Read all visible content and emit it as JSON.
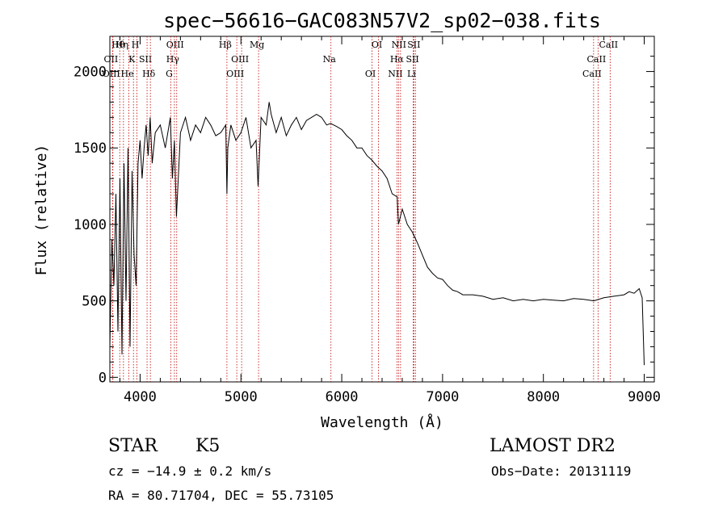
{
  "chart_data": {
    "type": "line",
    "title": "spec−56616−GAC083N57V2_sp02−038.fits",
    "xlabel": "Wavelength (Å)",
    "ylabel": "Flux (relative)",
    "xlim": [
      3700,
      9100
    ],
    "ylim": [
      -30,
      2230
    ],
    "xticks": [
      4000,
      5000,
      6000,
      7000,
      8000,
      9000
    ],
    "yticks": [
      0,
      500,
      1000,
      1500,
      2000
    ],
    "grid": false,
    "series": [
      {
        "x": [
          3700,
          3720,
          3740,
          3760,
          3780,
          3800,
          3820,
          3840,
          3860,
          3880,
          3900,
          3920,
          3940,
          3960,
          3980,
          4000,
          4020,
          4040,
          4060,
          4080,
          4100,
          4120,
          4150,
          4200,
          4250,
          4300,
          4320,
          4340,
          4360,
          4400,
          4450,
          4500,
          4550,
          4600,
          4650,
          4700,
          4750,
          4800,
          4850,
          4861,
          4870,
          4900,
          4950,
          5000,
          5050,
          5100,
          5150,
          5170,
          5200,
          5250,
          5280,
          5300,
          5350,
          5400,
          5450,
          5500,
          5550,
          5600,
          5650,
          5700,
          5750,
          5800,
          5850,
          5890,
          5950,
          6000,
          6050,
          6100,
          6150,
          6200,
          6250,
          6300,
          6350,
          6400,
          6450,
          6500,
          6550,
          6563,
          6600,
          6650,
          6700,
          6750,
          6800,
          6850,
          6900,
          6950,
          7000,
          7050,
          7100,
          7150,
          7200,
          7300,
          7400,
          7500,
          7600,
          7700,
          7800,
          7900,
          8000,
          8100,
          8200,
          8300,
          8400,
          8500,
          8600,
          8700,
          8800,
          8850,
          8900,
          8950,
          8980,
          9000
        ],
        "y": [
          200,
          900,
          600,
          1200,
          300,
          1300,
          150,
          1400,
          500,
          1500,
          200,
          1350,
          800,
          600,
          1400,
          1550,
          1300,
          1500,
          1650,
          1450,
          1700,
          1400,
          1600,
          1650,
          1500,
          1700,
          1300,
          1550,
          1050,
          1600,
          1700,
          1550,
          1650,
          1600,
          1700,
          1650,
          1580,
          1600,
          1650,
          1200,
          1500,
          1650,
          1550,
          1600,
          1700,
          1500,
          1550,
          1250,
          1700,
          1650,
          1800,
          1720,
          1600,
          1700,
          1580,
          1650,
          1700,
          1620,
          1680,
          1700,
          1720,
          1700,
          1650,
          1660,
          1640,
          1620,
          1580,
          1550,
          1500,
          1500,
          1450,
          1420,
          1380,
          1350,
          1300,
          1200,
          1180,
          1000,
          1100,
          1000,
          950,
          880,
          800,
          720,
          680,
          650,
          640,
          600,
          570,
          560,
          540,
          540,
          530,
          510,
          520,
          500,
          510,
          500,
          510,
          505,
          500,
          515,
          510,
          500,
          520,
          530,
          540,
          560,
          550,
          580,
          520,
          80
        ]
      }
    ],
    "lines": [
      {
        "label": "Hθ",
        "x": 3798
      },
      {
        "label": "OII",
        "x": 3727
      },
      {
        "label": "OIII",
        "x": 3730
      },
      {
        "label": "Hη",
        "x": 3835
      },
      {
        "label": "K",
        "x": 3934
      },
      {
        "label": "He",
        "x": 3889
      },
      {
        "label": "H",
        "x": 3969
      },
      {
        "label": "SII",
        "x": 4069
      },
      {
        "label": "Hδ",
        "x": 4102
      },
      {
        "label": "OIII",
        "x": 4363
      },
      {
        "label": "Hγ",
        "x": 4340
      },
      {
        "label": "G",
        "x": 4305
      },
      {
        "label": "Hβ",
        "x": 4861
      },
      {
        "label": "OIII",
        "x": 5007
      },
      {
        "label": "OIII",
        "x": 4959
      },
      {
        "label": "Mg",
        "x": 5175
      },
      {
        "label": "Na",
        "x": 5893
      },
      {
        "label": "OI",
        "x": 6300
      },
      {
        "label": "OI",
        "x": 6364
      },
      {
        "label": "Hα",
        "x": 6563
      },
      {
        "label": "NII",
        "x": 6548
      },
      {
        "label": "NII",
        "x": 6583
      },
      {
        "label": "SII",
        "x": 6717
      },
      {
        "label": "Li",
        "x": 6708
      },
      {
        "label": "SII",
        "x": 6731
      },
      {
        "label": "CaII",
        "x": 8542
      },
      {
        "label": "CaII",
        "x": 8498
      },
      {
        "label": "CaII",
        "x": 8662
      }
    ]
  },
  "info": {
    "object_class": "STAR",
    "subclass": "K5",
    "survey": "LAMOST DR2",
    "redshift_text": "cz = −14.9 ± 0.2 km/s",
    "obs_date_text": "Obs−Date: 20131119",
    "coords_text": "RA =  80.71704, DEC =  55.73105"
  },
  "colors": {
    "spectrum": "#000000",
    "line_markers": "#c00000"
  }
}
